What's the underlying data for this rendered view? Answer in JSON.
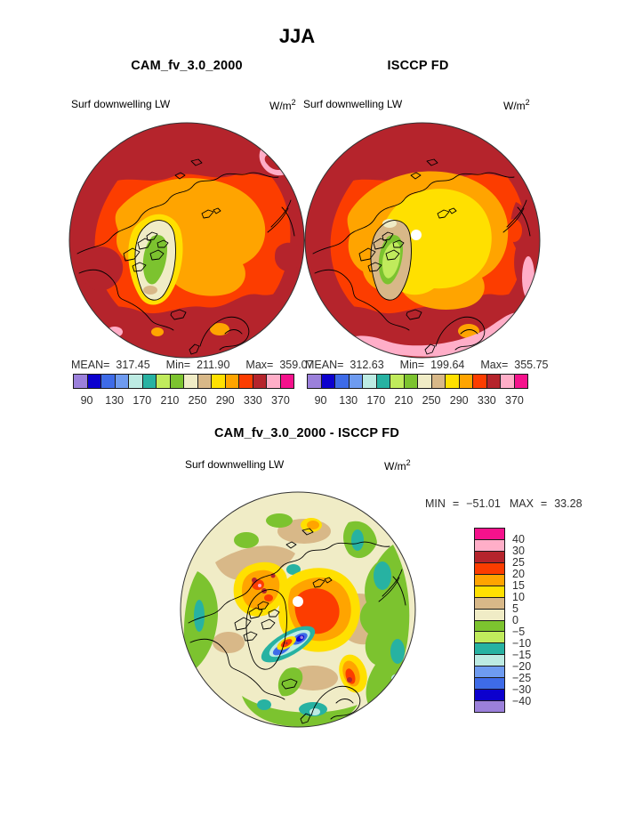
{
  "page": {
    "season_title": "JJA"
  },
  "panels": [
    {
      "title": "CAM_fv_3.0_2000",
      "field_label": "Surf downwelling LW",
      "units": "W/m",
      "units_sup": "2",
      "stats": {
        "mean_label": "MEAN=",
        "mean": "317.45",
        "min_label": "Min=",
        "min": "211.90",
        "max_label": "Max=",
        "max": "359.07"
      },
      "colorbar": {
        "tick_labels": [
          "90",
          "130",
          "170",
          "210",
          "250",
          "290",
          "330",
          "370"
        ]
      }
    },
    {
      "title": "ISCCP FD",
      "field_label": "Surf downwelling LW",
      "units": "W/m",
      "units_sup": "2",
      "stats": {
        "mean_label": "MEAN=",
        "mean": "312.63",
        "min_label": "Min=",
        "min": "199.64",
        "max_label": "Max=",
        "max": "355.75"
      },
      "colorbar": {
        "tick_labels": [
          "90",
          "130",
          "170",
          "210",
          "250",
          "290",
          "330",
          "370"
        ]
      }
    }
  ],
  "diff_panel": {
    "title": "CAM_fv_3.0_2000 - ISCCP FD",
    "field_label": "Surf downwelling LW",
    "units": "W/m",
    "units_sup": "2",
    "stats": {
      "min_label": "MIN",
      "min_eq": "=",
      "min": "−51.01",
      "max_label": "MAX",
      "max_eq": "=",
      "max": "33.28"
    },
    "colorbar": {
      "tick_labels": [
        "40",
        "30",
        "25",
        "20",
        "15",
        "10",
        "5",
        "0",
        "−5",
        "−10",
        "−15",
        "−20",
        "−25",
        "−30",
        "−40"
      ]
    }
  },
  "colorbar_colors": [
    "#9B80DB",
    "#0C00CE",
    "#3E6BE8",
    "#6E9BF0",
    "#BDEBE3",
    "#27B2A2",
    "#C0EB5C",
    "#7CC32F",
    "#F0ECC6",
    "#D8B888",
    "#FFE000",
    "#FFA400",
    "#FC3D00",
    "#B5242C",
    "#FFAEC8",
    "#F5128C"
  ],
  "chart_data": [
    {
      "type": "heatmap",
      "subtype": "polar-stereographic-filled-contour-map",
      "season": "JJA",
      "title": "CAM_fv_3.0_2000",
      "variable": "Surf downwelling LW",
      "units": "W/m^2",
      "stats": {
        "mean": 317.45,
        "min": 211.9,
        "max": 359.07
      },
      "contour_levels": [
        90,
        110,
        130,
        150,
        170,
        190,
        210,
        230,
        250,
        270,
        290,
        310,
        330,
        350,
        370
      ],
      "labeled_levels": [
        90,
        130,
        170,
        210,
        250,
        290,
        330,
        370
      ],
      "palette": [
        "#9B80DB",
        "#0C00CE",
        "#3E6BE8",
        "#6E9BF0",
        "#BDEBE3",
        "#27B2A2",
        "#C0EB5C",
        "#7CC32F",
        "#F0ECC6",
        "#D8B888",
        "#FFE000",
        "#FFA400",
        "#FC3D00",
        "#B5242C",
        "#FFAEC8",
        "#F5128C"
      ],
      "legend_position": "below",
      "description": "Arctic polar map: dark red (330-350) at low-latitude rim, orange-red and orange over mid Arctic, orange (290-310) over central Arctic Ocean, yellow ring around Greenland, Greenland interior cream (230-250) with green core (210-230), small pink (350-370) patches at rim."
    },
    {
      "type": "heatmap",
      "subtype": "polar-stereographic-filled-contour-map",
      "season": "JJA",
      "title": "ISCCP FD",
      "variable": "Surf downwelling LW",
      "units": "W/m^2",
      "stats": {
        "mean": 312.63,
        "min": 199.64,
        "max": 355.75
      },
      "contour_levels": [
        90,
        110,
        130,
        150,
        170,
        190,
        210,
        230,
        250,
        270,
        290,
        310,
        330,
        350,
        370
      ],
      "labeled_levels": [
        90,
        130,
        170,
        210,
        250,
        290,
        330,
        370
      ],
      "palette": [
        "#9B80DB",
        "#0C00CE",
        "#3E6BE8",
        "#6E9BF0",
        "#BDEBE3",
        "#27B2A2",
        "#C0EB5C",
        "#7CC32F",
        "#F0ECC6",
        "#D8B888",
        "#FFE000",
        "#FFA400",
        "#FC3D00",
        "#B5242C",
        "#FFAEC8",
        "#F5128C"
      ],
      "legend_position": "below",
      "description": "Arctic polar map: large yellow (270-290) cell over central Arctic with white missing-data dot at pole, orange and orange-red rings outward, dark red rim, pink (350-370) bands along bottom and right rim, Greenland tan edge with green ring and yellow-green (190-210) core."
    },
    {
      "type": "heatmap",
      "subtype": "polar-stereographic-filled-contour-difference-map",
      "season": "JJA",
      "title": "CAM_fv_3.0_2000 - ISCCP FD",
      "variable": "Surf downwelling LW",
      "units": "W/m^2",
      "stats": {
        "min": -51.01,
        "max": 33.28
      },
      "contour_levels": [
        -40,
        -30,
        -25,
        -20,
        -15,
        -10,
        -5,
        0,
        5,
        10,
        15,
        20,
        25,
        30,
        40
      ],
      "labeled_levels": [
        40,
        30,
        25,
        20,
        15,
        10,
        5,
        0,
        -5,
        -10,
        -15,
        -20,
        -25,
        -30,
        -40
      ],
      "palette": [
        "#9B80DB",
        "#0C00CE",
        "#3E6BE8",
        "#6E9BF0",
        "#BDEBE3",
        "#27B2A2",
        "#C0EB5C",
        "#7CC32F",
        "#F0ECC6",
        "#D8B888",
        "#FFE000",
        "#FFA400",
        "#FC3D00",
        "#B5242C",
        "#FFAEC8",
        "#F5128C"
      ],
      "legend_position": "right",
      "description": "Difference map: positive bias (orange-red, +20 to +25) over central Arctic Ocean and Canadian Archipelago with dark-red spots, yellow/orange halo, tan/cream near-zero background, green (-5 to 0) and teal (-15 to -10) patches around periphery, strong negative streaks (blue to dark blue, down to -40) southeast of Greenland, white dot at pole."
    }
  ]
}
